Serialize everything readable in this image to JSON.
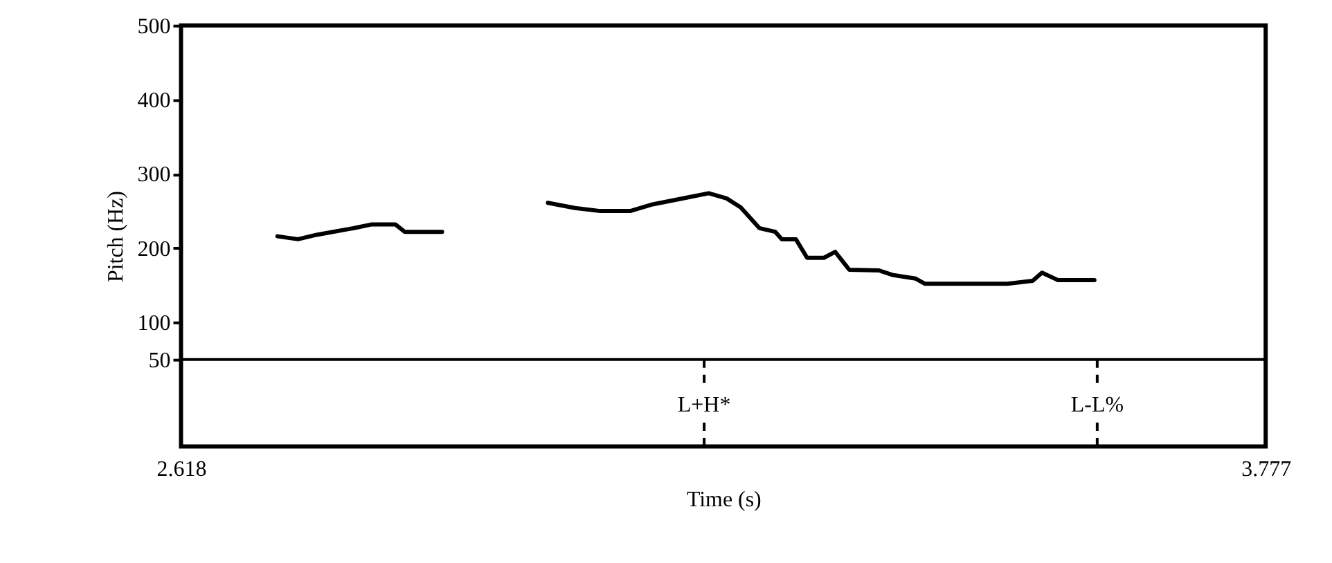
{
  "chart_data": {
    "type": "line",
    "ylabel": "Pitch (Hz)",
    "xlabel": "Time (s)",
    "xlim": [
      2.618,
      3.777
    ],
    "xticks": [
      2.618,
      3.777
    ],
    "ylim": [
      -67,
      500
    ],
    "yticks": [
      50,
      100,
      200,
      300,
      400,
      500
    ],
    "grid": false,
    "legend": false,
    "line_style": "solid",
    "marker": "none",
    "series": [
      {
        "color": "#000000",
        "x": [
          2.721,
          2.743,
          2.763,
          2.803,
          2.822,
          2.847,
          2.857,
          2.897,
          2.95,
          3.01,
          3.039,
          3.066,
          3.098,
          3.122,
          3.162,
          3.182,
          3.201,
          3.216,
          3.236,
          3.253,
          3.26,
          3.275,
          3.287,
          3.305,
          3.317,
          3.332,
          3.364,
          3.378,
          3.403,
          3.413,
          3.501,
          3.528,
          3.538,
          3.555,
          3.594
        ],
        "values": [
          216,
          212,
          218,
          227,
          232,
          232,
          222,
          222,
          null,
          261,
          254,
          250,
          250,
          259,
          269,
          274,
          267,
          255,
          227,
          222,
          212,
          212,
          187,
          187,
          195,
          171,
          170,
          164,
          159,
          152,
          152,
          156,
          167,
          157,
          157
        ]
      }
    ],
    "ref_lines": [
      {
        "axis": "y",
        "value": 50,
        "color": "#000000",
        "line_style": "solid"
      },
      {
        "axis": "x",
        "value": 3.177,
        "label": "L+H*",
        "color": "#000000",
        "line_style": "dashed"
      },
      {
        "axis": "x",
        "value": 3.597,
        "label": "L-L%",
        "color": "#000000",
        "line_style": "dashed"
      }
    ]
  }
}
